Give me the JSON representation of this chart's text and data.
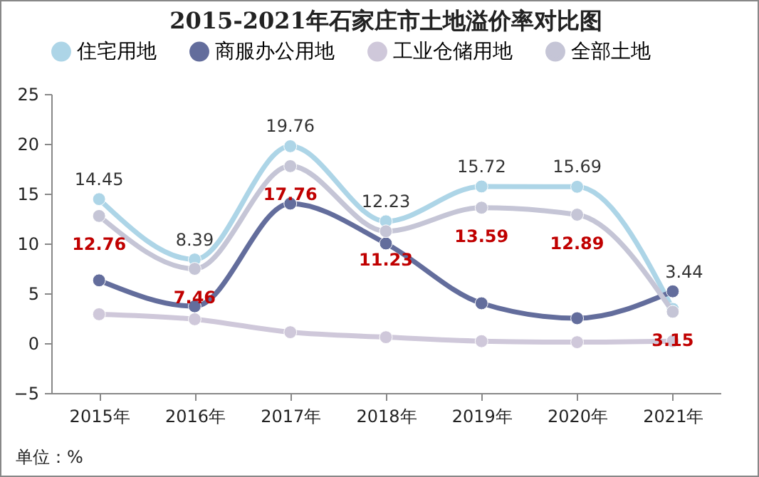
{
  "chart_data": {
    "type": "line",
    "title": "2015-2021年石家庄市土地溢价率对比图",
    "categories": [
      "2015年",
      "2016年",
      "2017年",
      "2018年",
      "2019年",
      "2020年",
      "2021年"
    ],
    "series": [
      {
        "name": "住宅用地",
        "color": "#add5e7",
        "values": [
          14.45,
          8.39,
          19.76,
          12.23,
          15.72,
          15.69,
          3.44
        ],
        "value_labels": [
          "14.45",
          "8.39",
          "19.76",
          "12.23",
          "15.72",
          "15.69",
          "3.44"
        ]
      },
      {
        "name": "商服办公用地",
        "color": "#636d9c",
        "values": [
          6.3,
          3.7,
          14.0,
          10.0,
          4.0,
          2.5,
          5.2
        ]
      },
      {
        "name": "工业仓储用地",
        "color": "#cfc8da",
        "values": [
          2.9,
          2.4,
          1.1,
          0.6,
          0.2,
          0.1,
          0.2
        ]
      },
      {
        "name": "全部土地",
        "color": "#c5c5d6",
        "values": [
          12.76,
          7.46,
          17.76,
          11.23,
          13.59,
          12.89,
          3.15
        ],
        "value_labels": [
          "12.76",
          "7.46",
          "17.76",
          "11.23",
          "13.59",
          "12.89",
          "3.15"
        ]
      }
    ],
    "ylim": [
      -5,
      25
    ],
    "yticks": [
      -5,
      0,
      5,
      10,
      15,
      20,
      25
    ],
    "legend": "top",
    "marker": "circle",
    "line_style": "solid",
    "annotations": [
      "单位：%"
    ]
  }
}
